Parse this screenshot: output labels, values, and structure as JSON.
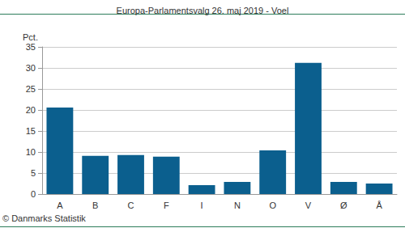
{
  "chart_data": {
    "type": "bar",
    "title": "Europa-Parlamentsvalg 26. maj 2019 - Voel",
    "y_label": "Pct.",
    "annotation": "© Danmarks Statistik",
    "categories": [
      "A",
      "B",
      "C",
      "F",
      "I",
      "N",
      "O",
      "V",
      "Ø",
      "Å"
    ],
    "values": [
      20.6,
      9.1,
      9.3,
      8.9,
      2.1,
      2.9,
      10.4,
      31.2,
      2.9,
      2.5
    ],
    "color": "#0b5f8e",
    "ylim": [
      0,
      35
    ],
    "yticks": [
      0,
      5,
      10,
      15,
      20,
      25,
      30,
      35
    ],
    "grid": true
  }
}
